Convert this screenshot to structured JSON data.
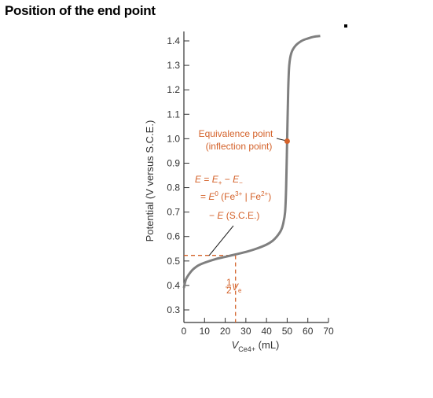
{
  "page": {
    "title": "Position of the end point"
  },
  "chart_data": {
    "type": "line",
    "title": "Position of the end point",
    "xlabel": "V_Ce4+ (mL)",
    "ylabel": "Potential (V versus S.C.E.)",
    "xlim": [
      0,
      70
    ],
    "ylim": [
      0.3,
      1.4
    ],
    "x_ticks": [
      "0",
      "10",
      "20",
      "30",
      "40",
      "50",
      "60",
      "70"
    ],
    "y_ticks": [
      "0.3",
      "0.4",
      "0.5",
      "0.6",
      "0.7",
      "0.8",
      "0.9",
      "1.0",
      "1.1",
      "1.2",
      "1.3",
      "1.4"
    ],
    "grid": false,
    "series": [
      {
        "color": "#7f7f7f",
        "x": [
          0,
          0.5,
          1,
          2,
          3,
          4,
          5,
          7,
          10,
          15,
          20,
          25,
          30,
          35,
          40,
          43,
          45,
          47,
          48,
          49,
          49.5,
          50,
          50.5,
          51,
          52,
          54,
          57,
          60,
          63,
          66
        ],
        "y": [
          0.39,
          0.41,
          0.425,
          0.44,
          0.452,
          0.462,
          0.47,
          0.482,
          0.493,
          0.507,
          0.517,
          0.527,
          0.537,
          0.55,
          0.567,
          0.583,
          0.6,
          0.625,
          0.65,
          0.7,
          0.8,
          1.0,
          1.2,
          1.3,
          1.35,
          1.38,
          1.4,
          1.41,
          1.417,
          1.42
        ]
      }
    ],
    "annotations": {
      "equivalence_point": {
        "x": 50,
        "y": 0.99,
        "line1": "Equivalence point",
        "line2": "(inflection point)",
        "color": "#d4622a"
      },
      "half_volume": {
        "x": 25,
        "y": 0.523,
        "label_frac_num": "1",
        "label_frac_den": "2",
        "label_v": "V",
        "label_sub": "e"
      },
      "equation": {
        "line1_E": "E",
        "line1_eq": " = ",
        "line1_Ep": "E",
        "line1_sub_p": "+",
        "line1_minus": " − ",
        "line1_Em": "E",
        "line1_sub_m": "−",
        "line2_eq": "= ",
        "line2_E": "E",
        "line2_sup0": "0",
        "line2_a": " (Fe",
        "line2_sup3": "3+",
        "line2_b": " | Fe",
        "line2_sup2": "2+",
        "line2_c": ")",
        "line3_minus": "− ",
        "line3_E": "E",
        "line3_rest": " (S.C.E.)"
      }
    }
  }
}
